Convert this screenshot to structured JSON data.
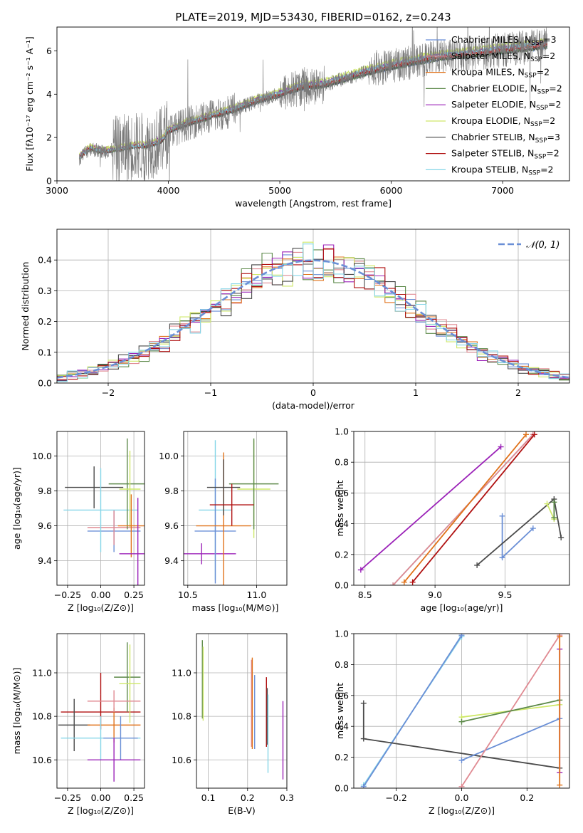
{
  "colors": {
    "chabrier_miles": "#6a8fd6",
    "salpeter_miles": "#e08a92",
    "kroupa_miles": "#e0721a",
    "chabrier_elodie": "#5d8a4a",
    "salpeter_elodie": "#9b22b8",
    "kroupa_elodie": "#cfe86a",
    "chabrier_stelib": "#4a4a4a",
    "salpeter_stelib": "#b01010",
    "kroupa_stelib": "#86d6e8",
    "gaussian": "#6a8fd6",
    "spectrum": "#7a7a7a"
  },
  "chart_data": [
    {
      "type": "line",
      "title": "PLATE=2019, MJD=53430, FIBERID=0162, z=0.243",
      "xlabel": "wavelength [Angstrom, rest frame]",
      "ylabel": "Flux [fλ10⁻¹⁷ erg cm⁻² s⁻¹ A⁻¹]",
      "xlim": [
        3000,
        7600
      ],
      "ylim": [
        0,
        7.1
      ],
      "xticks": [
        "3000",
        "4000",
        "5000",
        "6000",
        "7000"
      ],
      "yticks": [
        "0",
        "2",
        "4",
        "6"
      ],
      "legend_position": "right",
      "legend": [
        {
          "key": "chabrier_miles",
          "label": "Chabrier MILES, N",
          "sub": "SSP",
          "tail": "=3"
        },
        {
          "key": "salpeter_miles",
          "label": "Salpeter MILES, N",
          "sub": "SSP",
          "tail": "=2"
        },
        {
          "key": "kroupa_miles",
          "label": "Kroupa MILES, N",
          "sub": "SSP",
          "tail": "=2"
        },
        {
          "key": "chabrier_elodie",
          "label": "Chabrier ELODIE, N",
          "sub": "SSP",
          "tail": "=2"
        },
        {
          "key": "salpeter_elodie",
          "label": "Salpeter ELODIE, N",
          "sub": "SSP",
          "tail": "=2"
        },
        {
          "key": "kroupa_elodie",
          "label": "Kroupa ELODIE, N",
          "sub": "SSP",
          "tail": "=2"
        },
        {
          "key": "chabrier_stelib",
          "label": "Chabrier STELIB, N",
          "sub": "SSP",
          "tail": "=3"
        },
        {
          "key": "salpeter_stelib",
          "label": "Salpeter STELIB, N",
          "sub": "SSP",
          "tail": "=2"
        },
        {
          "key": "kroupa_stelib",
          "label": "Kroupa STELIB, N",
          "sub": "SSP",
          "tail": "=2"
        }
      ],
      "continuum": {
        "x": [
          3200,
          3250,
          3300,
          3400,
          3500,
          3600,
          3700,
          3800,
          3900,
          3950,
          4000,
          4100,
          4200,
          4400,
          4600,
          4800,
          5000,
          5200,
          5400,
          5600,
          5800,
          6000,
          6200,
          6400,
          6600,
          6800,
          7000,
          7200,
          7400
        ],
        "y": [
          1.05,
          1.3,
          1.5,
          1.35,
          1.4,
          1.5,
          1.6,
          1.6,
          1.75,
          1.9,
          2.3,
          2.5,
          2.7,
          3.0,
          3.3,
          3.7,
          4.0,
          4.35,
          4.45,
          4.75,
          5.05,
          5.3,
          5.5,
          5.7,
          5.8,
          5.9,
          6.05,
          6.15,
          6.3
        ]
      }
    },
    {
      "type": "line",
      "xlabel": "(data-model)/error",
      "ylabel": "Normed distribution",
      "xlim": [
        -2.5,
        2.5
      ],
      "ylim": [
        0,
        0.5
      ],
      "xticks": [
        "−2",
        "−1",
        "0",
        "1",
        "2"
      ],
      "yticks": [
        "0.0",
        "0.1",
        "0.2",
        "0.3",
        "0.4"
      ],
      "legend_label": "𝒩(0, 1)",
      "legend_position": "top-right",
      "histogram_peak": 0.47
    },
    {
      "type": "scatter",
      "xlabel": "Z [log₁₀(Z/Z⊙)]",
      "ylabel": "age  [log₁₀(age/yr)]",
      "xlim": [
        -0.33,
        0.33
      ],
      "ylim": [
        9.26,
        10.14
      ],
      "xticks": [
        "−0.25",
        "0.00",
        "0.25"
      ],
      "yticks": [
        "9.4",
        "9.6",
        "9.8",
        "10.0"
      ],
      "points": [
        {
          "key": "chabrier_stelib",
          "x": -0.05,
          "xerr": 0.22,
          "y": 9.82,
          "yerr": 0.12
        },
        {
          "key": "chabrier_miles",
          "x": 0.1,
          "xerr": 0.2,
          "y": 9.57,
          "yerr": 0.12
        },
        {
          "key": "salpeter_miles",
          "x": 0.1,
          "xerr": 0.2,
          "y": 9.59,
          "yerr": 0.1
        },
        {
          "key": "kroupa_stelib",
          "x": 0.0,
          "xerr": 0.28,
          "y": 9.69,
          "yerr": 0.24
        },
        {
          "key": "chabrier_elodie",
          "x": 0.2,
          "xerr": 0.14,
          "y": 9.84,
          "yerr": 0.26
        },
        {
          "key": "kroupa_elodie",
          "x": 0.22,
          "xerr": 0.08,
          "y": 9.81,
          "yerr": 0.22
        },
        {
          "key": "kroupa_miles",
          "x": 0.23,
          "xerr": 0.1,
          "y": 9.6,
          "yerr": 0.18
        },
        {
          "key": "salpeter_elodie",
          "x": 0.28,
          "xerr": 0.14,
          "y": 9.44,
          "yerr": 0.32
        }
      ]
    },
    {
      "type": "scatter",
      "xlabel": "mass [log₁₀(M/M⊙)]",
      "ylabel": "",
      "xlim": [
        10.47,
        11.22
      ],
      "ylim": [
        9.26,
        10.14
      ],
      "xticks": [
        "10.5",
        "11.0"
      ],
      "yticks": [
        "9.4",
        "9.6",
        "9.8",
        "10.0"
      ],
      "points": [
        {
          "key": "salpeter_elodie",
          "x": 10.6,
          "xerr": 0.25,
          "y": 9.44,
          "yerr": 0.06
        },
        {
          "key": "kroupa_stelib",
          "x": 10.7,
          "xerr": 0.12,
          "y": 9.69,
          "yerr": 0.4
        },
        {
          "key": "chabrier_miles",
          "x": 10.7,
          "xerr": 0.15,
          "y": 9.57,
          "yerr": 0.3
        },
        {
          "key": "kroupa_miles",
          "x": 10.76,
          "xerr": 0.2,
          "y": 9.6,
          "yerr": 0.42
        },
        {
          "key": "chabrier_stelib",
          "x": 10.76,
          "xerr": 0.12,
          "y": 9.82,
          "yerr": 0.16
        },
        {
          "key": "kroupa_elodie",
          "x": 10.98,
          "xerr": 0.12,
          "y": 9.81,
          "yerr": 0.28
        },
        {
          "key": "chabrier_elodie",
          "x": 10.98,
          "xerr": 0.18,
          "y": 9.84,
          "yerr": 0.26
        },
        {
          "key": "salpeter_stelib",
          "x": 10.82,
          "xerr": 0.16,
          "y": 9.72,
          "yerr": 0.12
        }
      ]
    },
    {
      "type": "line",
      "xlabel": "age  [log₁₀(age/yr)]",
      "ylabel": "mass weight",
      "xlim": [
        8.42,
        9.96
      ],
      "ylim": [
        0,
        1.0
      ],
      "xticks": [
        "8.5",
        "9.0",
        "9.5"
      ],
      "yticks": [
        "0.0",
        "0.2",
        "0.4",
        "0.6",
        "0.8",
        "1.0"
      ],
      "series": [
        {
          "key": "salpeter_elodie",
          "x": [
            8.47,
            9.47
          ],
          "y": [
            0.1,
            0.9
          ]
        },
        {
          "key": "kroupa_stelib",
          "x": [
            8.7,
            9.7
          ],
          "y": [
            0.0,
            0.98
          ]
        },
        {
          "key": "salpeter_miles",
          "x": [
            8.7,
            9.7
          ],
          "y": [
            0.0,
            0.98
          ]
        },
        {
          "key": "kroupa_miles",
          "x": [
            8.78,
            9.65
          ],
          "y": [
            0.02,
            0.98
          ]
        },
        {
          "key": "salpeter_stelib",
          "x": [
            8.84,
            9.71
          ],
          "y": [
            0.02,
            0.98
          ]
        },
        {
          "key": "chabrier_miles",
          "x": [
            9.48,
            9.48,
            9.7
          ],
          "y": [
            0.45,
            0.18,
            0.37
          ]
        },
        {
          "key": "chabrier_stelib",
          "x": [
            9.3,
            9.85,
            9.9
          ],
          "y": [
            0.13,
            0.56,
            0.31
          ]
        },
        {
          "key": "kroupa_elodie",
          "x": [
            9.8,
            9.85
          ],
          "y": [
            0.53,
            0.43
          ]
        },
        {
          "key": "chabrier_elodie",
          "x": [
            9.85,
            9.85
          ],
          "y": [
            0.54,
            0.44
          ]
        }
      ]
    },
    {
      "type": "scatter",
      "xlabel": "Z [log₁₀(Z/Z⊙)]",
      "ylabel": "mass [log₁₀(M/M⊙)]",
      "xlim": [
        -0.33,
        0.33
      ],
      "ylim": [
        10.47,
        11.18
      ],
      "xticks": [
        "−0.25",
        "0.00",
        "0.25"
      ],
      "yticks": [
        "10.6",
        "10.8",
        "11.0"
      ],
      "points": [
        {
          "key": "salpeter_stelib",
          "x": 0.0,
          "xerr": 0.3,
          "y": 10.82,
          "yerr": 0.08
        },
        {
          "key": "chabrier_stelib",
          "x": -0.2,
          "xerr": 0.12,
          "y": 10.76,
          "yerr": 0.12
        },
        {
          "key": "kroupa_miles",
          "x": 0.1,
          "xerr": 0.2,
          "y": 10.76,
          "yerr": 0.08
        },
        {
          "key": "kroupa_stelib",
          "x": 0.0,
          "xerr": 0.3,
          "y": 10.7,
          "yerr": 0.1
        },
        {
          "key": "chabrier_miles",
          "x": 0.15,
          "xerr": 0.13,
          "y": 10.7,
          "yerr": 0.1
        },
        {
          "key": "salpeter_elodie",
          "x": 0.1,
          "xerr": 0.2,
          "y": 10.6,
          "yerr": 0.1
        },
        {
          "key": "chabrier_elodie",
          "x": 0.2,
          "xerr": 0.1,
          "y": 10.98,
          "yerr": 0.16
        },
        {
          "key": "kroupa_elodie",
          "x": 0.22,
          "xerr": 0.08,
          "y": 10.95,
          "yerr": 0.18
        },
        {
          "key": "salpeter_miles",
          "x": 0.1,
          "xerr": 0.2,
          "y": 10.87,
          "yerr": 0.05
        },
        {
          "key": "salpeter_stelib",
          "x": 0.0,
          "xerr": 0.0,
          "y": 10.95,
          "yerr": 0.05
        }
      ]
    },
    {
      "type": "scatter",
      "xlabel": "E(B-V)",
      "ylabel": "",
      "xlim": [
        0.07,
        0.3
      ],
      "ylim": [
        10.47,
        11.18
      ],
      "xticks": [
        "0.1",
        "0.2",
        "0.3"
      ],
      "yticks": [
        "10.6",
        "10.8",
        "11.0"
      ],
      "points": [
        {
          "key": "chabrier_elodie",
          "x": 0.085,
          "xerr": 0,
          "y": 10.97,
          "yerr": 0.18
        },
        {
          "key": "kroupa_elodie",
          "x": 0.087,
          "xerr": 0,
          "y": 10.95,
          "yerr": 0.17
        },
        {
          "key": "salpeter_miles",
          "x": 0.21,
          "xerr": 0,
          "y": 10.86,
          "yerr": 0.2
        },
        {
          "key": "kroupa_miles",
          "x": 0.212,
          "xerr": 0,
          "y": 10.86,
          "yerr": 0.21
        },
        {
          "key": "chabrier_miles",
          "x": 0.218,
          "xerr": 0,
          "y": 10.82,
          "yerr": 0.17
        },
        {
          "key": "salpeter_stelib",
          "x": 0.248,
          "xerr": 0,
          "y": 10.82,
          "yerr": 0.16
        },
        {
          "key": "chabrier_stelib",
          "x": 0.25,
          "xerr": 0,
          "y": 10.8,
          "yerr": 0.13
        },
        {
          "key": "kroupa_stelib",
          "x": 0.252,
          "xerr": 0,
          "y": 10.72,
          "yerr": 0.18
        },
        {
          "key": "salpeter_elodie",
          "x": 0.29,
          "xerr": 0,
          "y": 10.69,
          "yerr": 0.18
        }
      ]
    },
    {
      "type": "line",
      "xlabel": "Z [log₁₀(Z/Z⊙)]",
      "ylabel": "mass weight",
      "xlim": [
        -0.33,
        0.33
      ],
      "ylim": [
        0,
        1.0
      ],
      "xticks": [
        "−0.2",
        "0.0",
        "0.2"
      ],
      "yticks": [
        "0.0",
        "0.2",
        "0.4",
        "0.6",
        "0.8",
        "1.0"
      ],
      "series": [
        {
          "key": "kroupa_stelib",
          "x": [
            -0.3,
            0.0
          ],
          "y": [
            0.02,
            0.98
          ]
        },
        {
          "key": "chabrier_miles",
          "x": [
            -0.3,
            0.0
          ],
          "y": [
            0.01,
            0.99
          ]
        },
        {
          "key": "chabrier_stelib",
          "x": [
            -0.3,
            -0.3,
            0.3
          ],
          "y": [
            0.55,
            0.32,
            0.13
          ]
        },
        {
          "key": "chabrier_miles",
          "x": [
            0.0,
            0.3
          ],
          "y": [
            0.18,
            0.45
          ]
        },
        {
          "key": "salpeter_miles",
          "x": [
            0.0,
            0.3
          ],
          "y": [
            0.01,
            0.99
          ]
        },
        {
          "key": "kroupa_elodie",
          "x": [
            0.0,
            0.3
          ],
          "y": [
            0.46,
            0.54
          ]
        },
        {
          "key": "chabrier_elodie",
          "x": [
            0.0,
            0.3
          ],
          "y": [
            0.43,
            0.57
          ]
        },
        {
          "key": "salpeter_elodie",
          "x": [
            0.3,
            0.3
          ],
          "y": [
            0.1,
            0.9
          ]
        },
        {
          "key": "kroupa_miles",
          "x": [
            0.3,
            0.3
          ],
          "y": [
            0.02,
            0.98
          ]
        }
      ]
    }
  ]
}
